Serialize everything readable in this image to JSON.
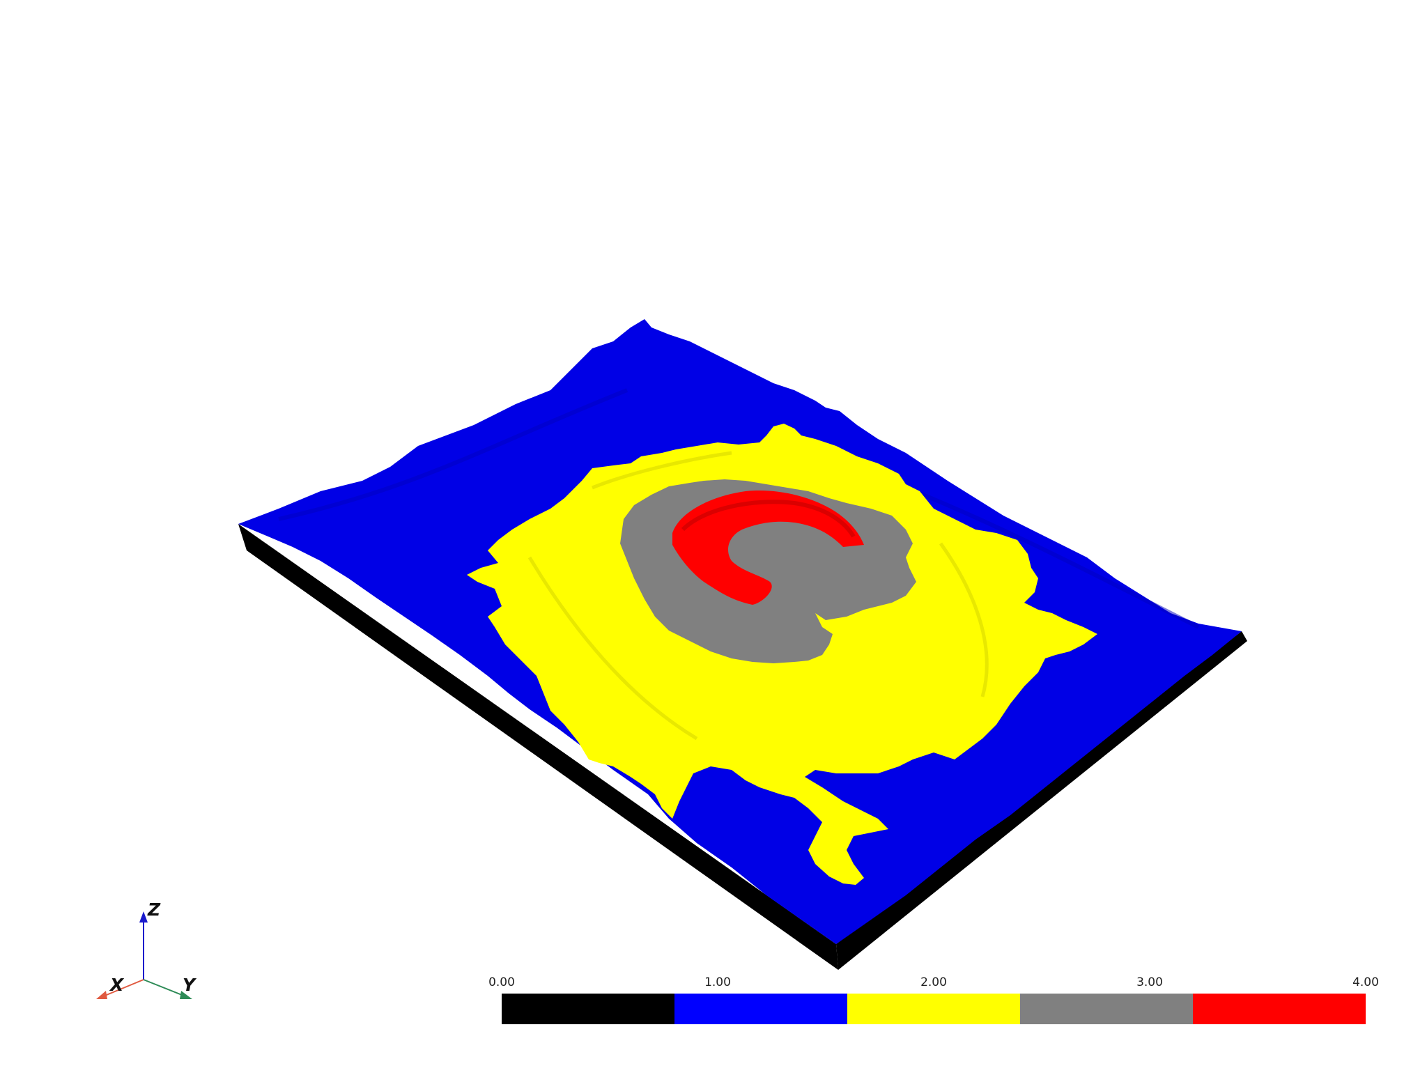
{
  "scene": {
    "background": "#ffffff",
    "surface_colors": {
      "side_wall": "#000000",
      "base": "#0000e6",
      "slope": "#ffff00",
      "upper": "#808080",
      "summit": "#ff0000"
    }
  },
  "axes_widget": {
    "x_label": "X",
    "y_label": "Y",
    "z_label": "Z",
    "x_color": "#e05a40",
    "y_color": "#2e8b57",
    "z_color": "#1a1acc"
  },
  "colorbar": {
    "ticks": [
      "0.00",
      "1.00",
      "2.00",
      "3.00",
      "4.00"
    ],
    "range": [
      0,
      4
    ],
    "segments": [
      {
        "color": "#000000"
      },
      {
        "color": "#0000ff"
      },
      {
        "color": "#ffff00"
      },
      {
        "color": "#808080"
      },
      {
        "color": "#ff0000"
      }
    ]
  }
}
